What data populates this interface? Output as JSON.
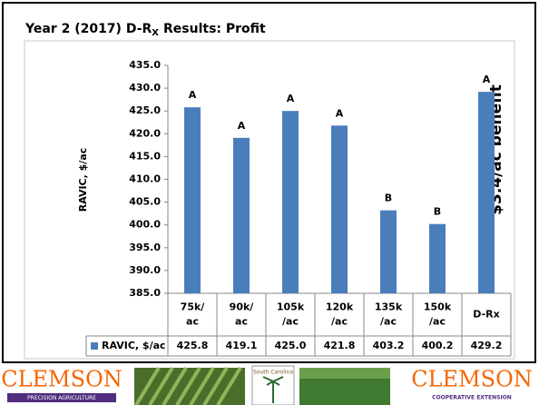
{
  "chart_data": {
    "type": "bar",
    "title_main": "Year 2 (2017) D-R",
    "title_sub": "X",
    "title_rest": "Results: Profit",
    "y_label": "RAVIC, $/ac",
    "annotation": "$3.4/ac benefit",
    "categories": [
      [
        "75k/",
        "ac"
      ],
      [
        "90k/",
        "ac"
      ],
      [
        "105k",
        "/ac"
      ],
      [
        "120k",
        "/ac"
      ],
      [
        "135k",
        "/ac"
      ],
      [
        "150k",
        "/ac"
      ],
      [
        "D-Rx"
      ]
    ],
    "series": [
      {
        "name": "RAVIC, $/ac",
        "color": "#4a7ebb",
        "values": [
          425.8,
          419.1,
          425.0,
          421.8,
          403.2,
          400.2,
          429.2
        ],
        "value_labels": [
          "425.8",
          "419.1",
          "425.0",
          "421.8",
          "403.2",
          "400.2",
          "429.2"
        ]
      }
    ],
    "letters": [
      "A",
      "A",
      "A",
      "A",
      "B",
      "B",
      "A"
    ],
    "ylim": [
      385,
      435
    ],
    "yticks": [
      {
        "value": 385,
        "label": "385.0"
      },
      {
        "value": 390,
        "label": "390.0"
      },
      {
        "value": 395,
        "label": "395.0"
      },
      {
        "value": 400,
        "label": "400.0"
      },
      {
        "value": 405,
        "label": "405.0"
      },
      {
        "value": 410,
        "label": "410.0"
      },
      {
        "value": 415,
        "label": "415.0"
      },
      {
        "value": 420,
        "label": "420.0"
      },
      {
        "value": 425,
        "label": "425.0"
      },
      {
        "value": 430,
        "label": "430.0"
      },
      {
        "value": 435,
        "label": "435.0"
      }
    ]
  },
  "footer": {
    "left_logo": "CLEMSON",
    "left_sub": "PRECISION AGRICULTURE",
    "center_text": "South Carolina",
    "right_logo": "CLEMSON",
    "right_sub": "COOPERATIVE EXTENSION"
  }
}
